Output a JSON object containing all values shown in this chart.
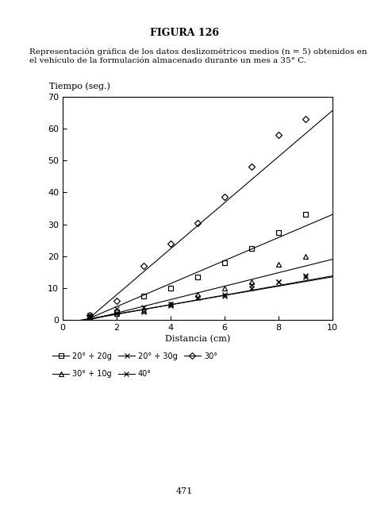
{
  "title": "FIGURA 126",
  "description_line1": "Representación gráfica de los datos deslizométricos medios (n = 5) obtenidos en",
  "description_line2": "el vehículo de la formulación almacenado durante un mes a 35° C.",
  "xlabel": "Distancia (cm)",
  "ylabel": "Tiempo (seg.)",
  "xlim": [
    0,
    10
  ],
  "ylim": [
    0,
    70
  ],
  "xticks": [
    0,
    2,
    4,
    6,
    8,
    10
  ],
  "yticks": [
    0,
    10,
    20,
    30,
    40,
    50,
    60,
    70
  ],
  "page_number": "471",
  "series": [
    {
      "label": "20° + 20g",
      "marker": "s",
      "x": [
        1,
        2,
        3,
        4,
        5,
        6,
        7,
        8,
        9
      ],
      "y": [
        1.0,
        2.5,
        7.5,
        10.0,
        13.5,
        18.0,
        22.5,
        27.5,
        33.0
      ],
      "fit_slope": 3.6,
      "fit_intercept": -3.0
    },
    {
      "label": "20° + 30g",
      "marker": "x",
      "x": [
        1,
        2,
        3,
        4,
        5,
        6,
        7,
        8,
        9
      ],
      "y": [
        1.5,
        3.5,
        4.0,
        5.0,
        7.0,
        8.0,
        10.0,
        12.0,
        14.0
      ],
      "fit_slope": 1.45,
      "fit_intercept": -1.0
    },
    {
      "label": "30°",
      "marker": "D",
      "x": [
        1,
        2,
        3,
        4,
        5,
        6,
        7,
        8,
        9
      ],
      "y": [
        1.5,
        6.0,
        17.0,
        24.0,
        30.5,
        38.5,
        48.0,
        58.0,
        63.0
      ],
      "fit_slope": 7.2,
      "fit_intercept": -6.5
    },
    {
      "label": "30° + 10g",
      "marker": "^",
      "x": [
        1,
        2,
        3,
        4,
        5,
        6,
        7,
        8,
        9
      ],
      "y": [
        1.0,
        2.0,
        3.0,
        5.0,
        8.0,
        10.0,
        12.0,
        17.5,
        20.0
      ],
      "fit_slope": 2.1,
      "fit_intercept": -2.0
    },
    {
      "label": "40°",
      "marker": "x",
      "x": [
        1,
        2,
        3,
        4,
        5,
        6,
        7,
        8,
        9
      ],
      "y": [
        1.0,
        2.0,
        2.5,
        4.5,
        7.0,
        7.5,
        11.0,
        12.0,
        13.5
      ],
      "fit_slope": 1.5,
      "fit_intercept": -1.2
    }
  ],
  "legend_markers": [
    "s",
    "x",
    "D",
    "^",
    "x"
  ],
  "legend_mfc": [
    "none",
    "black",
    "none",
    "none",
    "black"
  ]
}
